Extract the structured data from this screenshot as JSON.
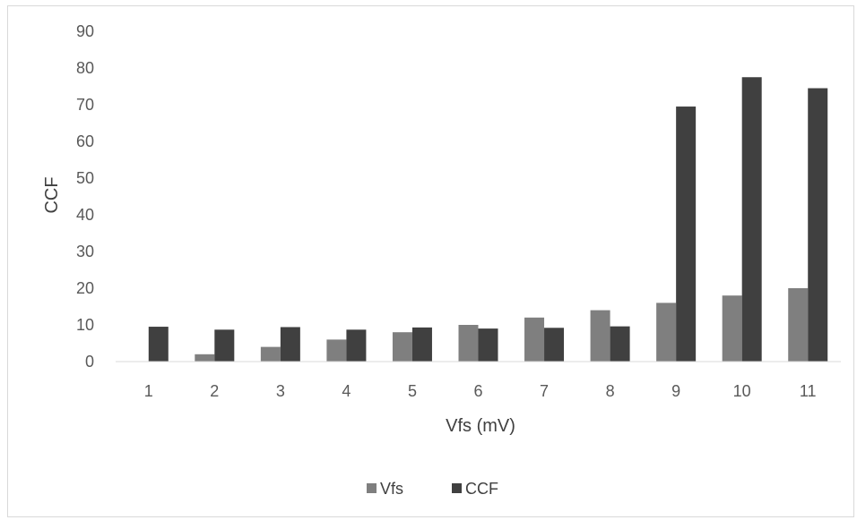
{
  "chart_data": {
    "type": "bar",
    "title": "",
    "xlabel": "Vfs (mV)",
    "ylabel": "CCF",
    "categories": [
      "1",
      "2",
      "3",
      "4",
      "5",
      "6",
      "7",
      "8",
      "9",
      "10",
      "11"
    ],
    "series": [
      {
        "name": "Vfs",
        "color": "#7f7f7f",
        "values": [
          0,
          2,
          4,
          6,
          8,
          10,
          12,
          14,
          16,
          18,
          20
        ]
      },
      {
        "name": "CCF",
        "color": "#404040",
        "values": [
          9.5,
          8.7,
          9.4,
          8.7,
          9.3,
          9.0,
          9.2,
          9.6,
          69.5,
          77.5,
          74.5
        ]
      }
    ],
    "ylim": [
      0,
      90
    ],
    "yticks": [
      0,
      10,
      20,
      30,
      40,
      50,
      60,
      70,
      80,
      90
    ],
    "grid": false,
    "legend_position": "bottom"
  }
}
